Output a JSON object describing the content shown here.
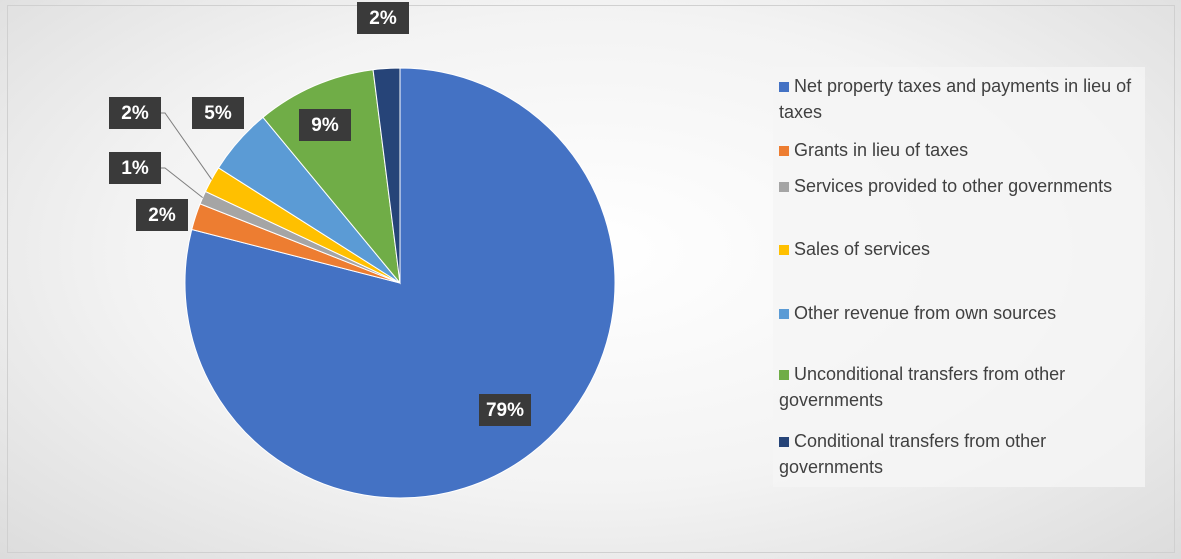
{
  "chart_data": {
    "type": "pie",
    "categories": [
      "Net property taxes and payments in lieu of taxes",
      "Grants in lieu of taxes",
      "Services provided to other governments",
      "Sales of services",
      "Other revenue from own sources",
      "Unconditional transfers from other governments",
      "Conditional transfers from other governments"
    ],
    "values": [
      79,
      2,
      1,
      2,
      5,
      9,
      2
    ],
    "value_labels": [
      "79%",
      "2%",
      "1%",
      "2%",
      "5%",
      "9%",
      "2%"
    ],
    "colors": [
      "#4472c4",
      "#ed7d31",
      "#a5a5a5",
      "#ffc000",
      "#5b9bd5",
      "#70ad47",
      "#264478"
    ],
    "legend": "right"
  }
}
